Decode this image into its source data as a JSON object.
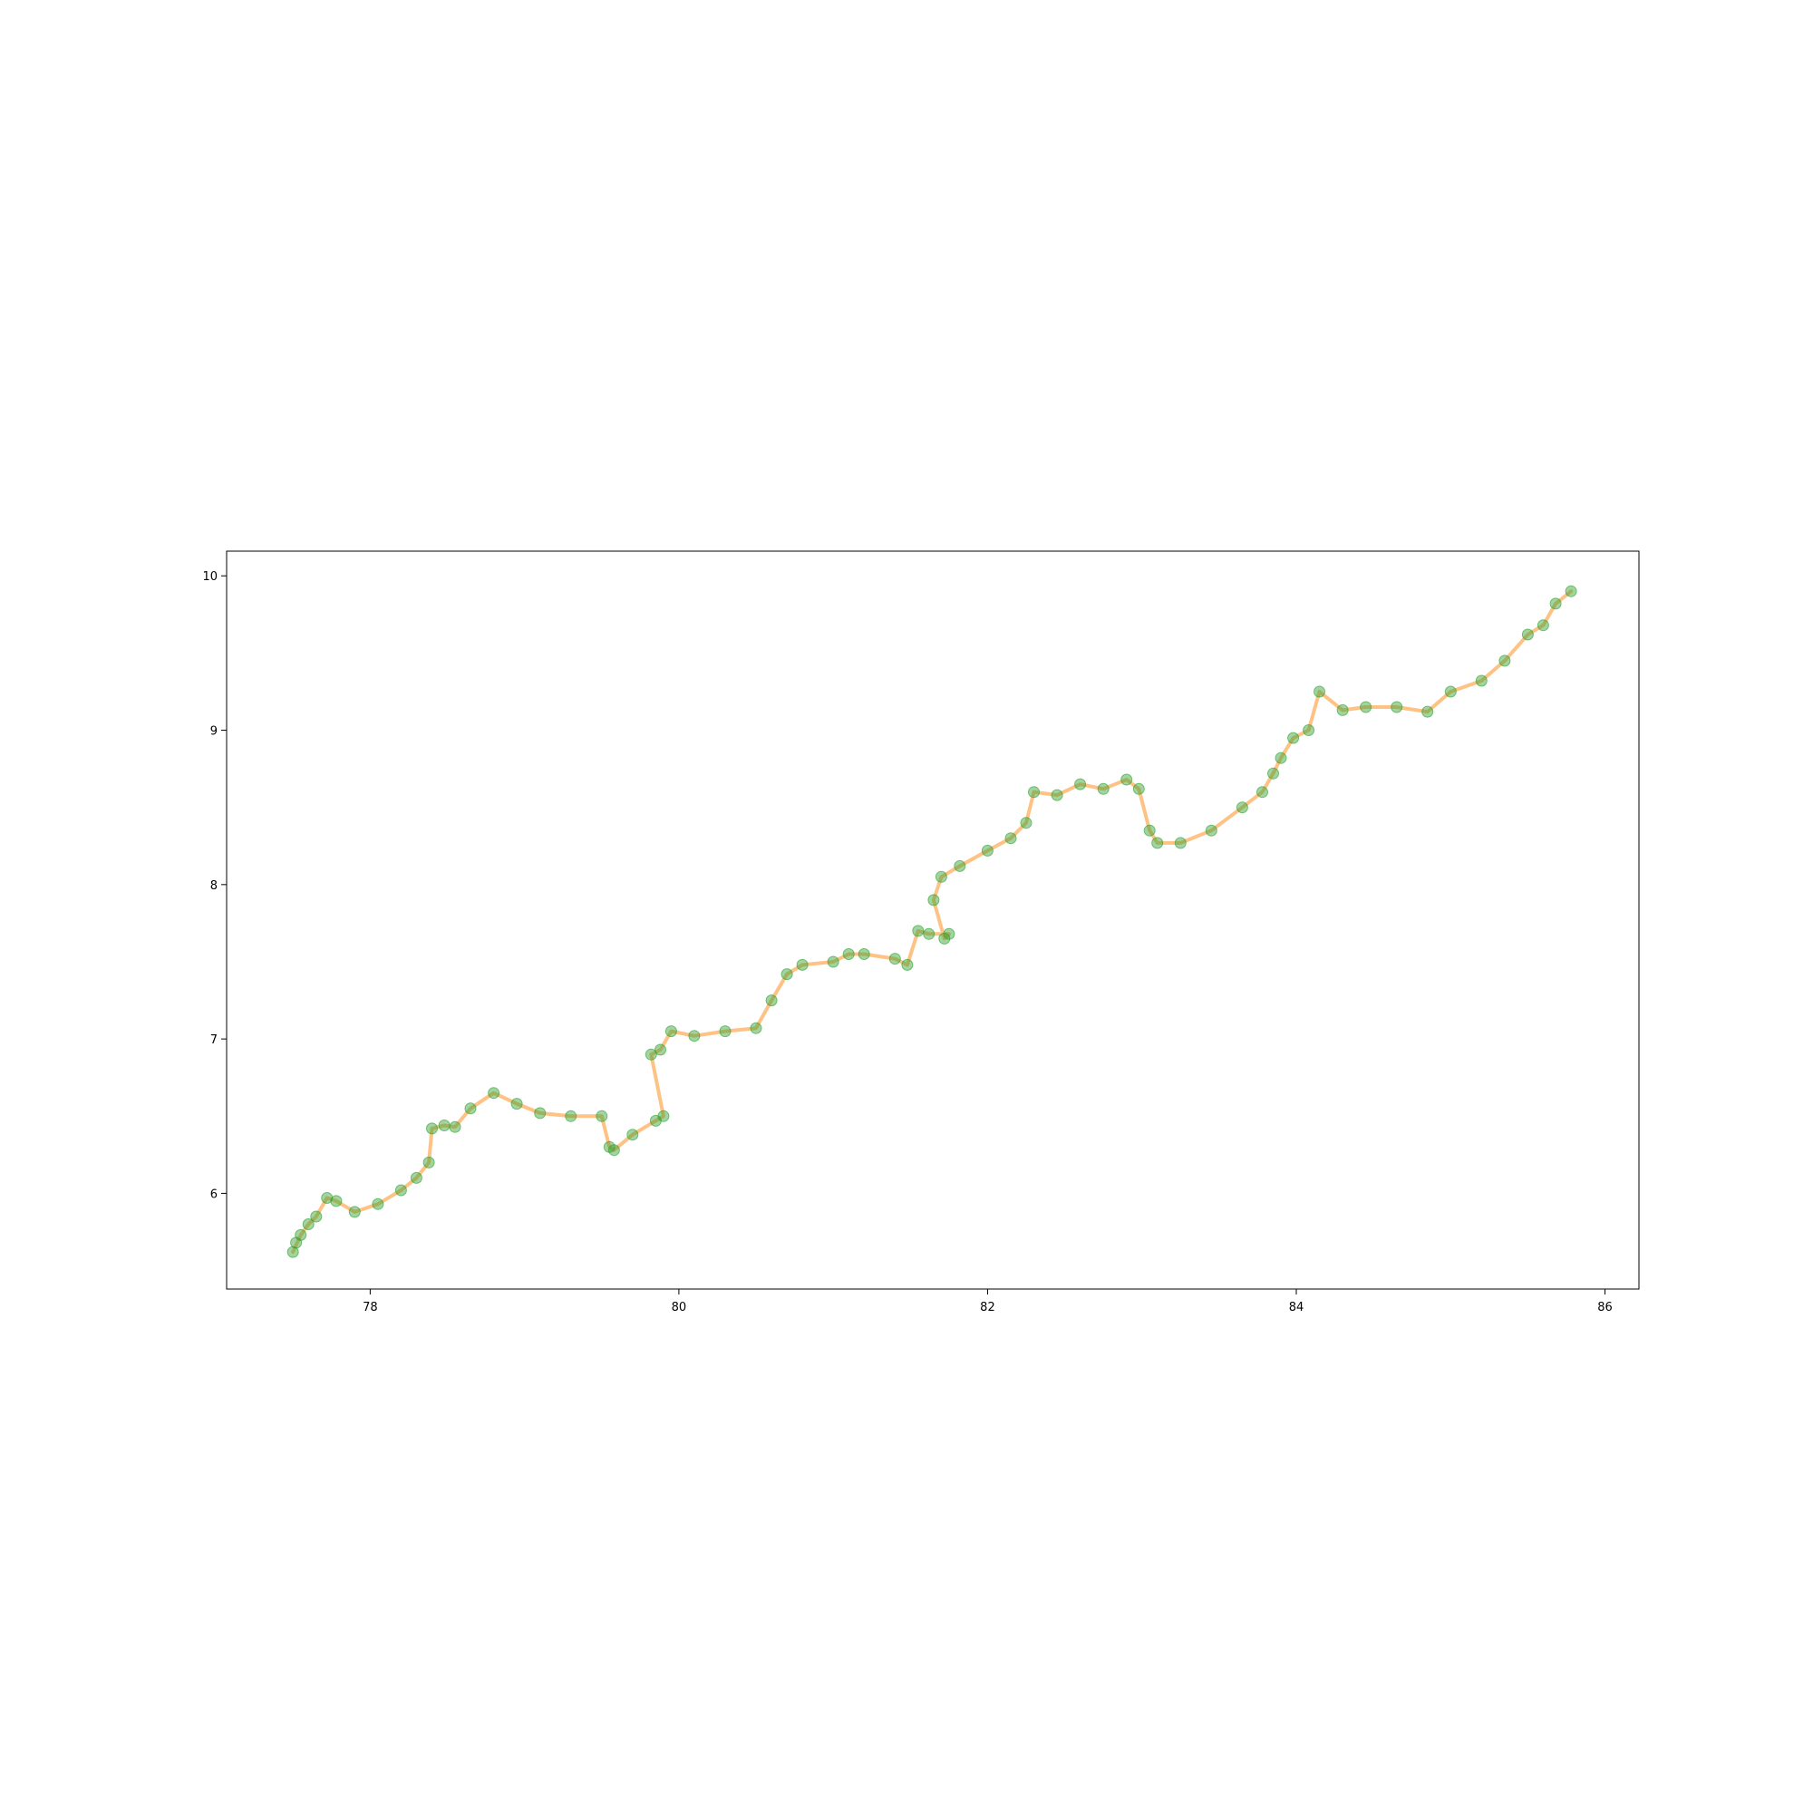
{
  "chart_data": {
    "type": "scatter",
    "title": "",
    "xlabel": "",
    "ylabel": "",
    "xlim": [
      77.07,
      86.22
    ],
    "ylim": [
      5.38,
      10.16
    ],
    "grid": false,
    "legend": "none",
    "x_ticks": [
      {
        "value": 78,
        "label": "78"
      },
      {
        "value": 80,
        "label": "80"
      },
      {
        "value": 82,
        "label": "82"
      },
      {
        "value": 84,
        "label": "84"
      },
      {
        "value": 86,
        "label": "86"
      }
    ],
    "y_ticks": [
      {
        "value": 6,
        "label": "6"
      },
      {
        "value": 7,
        "label": "7"
      },
      {
        "value": 8,
        "label": "8"
      },
      {
        "value": 9,
        "label": "9"
      },
      {
        "value": 10,
        "label": "10"
      }
    ],
    "series": [
      {
        "style": "line",
        "color": "#ffbb78",
        "x": [
          77.5,
          77.55,
          77.6,
          77.65,
          77.72,
          77.78,
          77.9,
          78.05,
          78.2,
          78.3,
          78.38,
          78.4,
          78.48,
          78.55,
          78.65,
          78.8,
          78.95,
          79.1,
          79.3,
          79.5,
          79.55,
          79.58,
          79.7,
          79.85,
          79.9,
          79.82,
          79.88,
          79.95,
          80.1,
          80.3,
          80.5,
          80.6,
          80.7,
          80.8,
          81.0,
          81.1,
          81.2,
          81.4,
          81.48,
          81.55,
          81.62,
          81.75,
          81.72,
          81.65,
          81.7,
          81.82,
          82.0,
          82.15,
          82.25,
          82.3,
          82.45,
          82.6,
          82.75,
          82.9,
          82.98,
          83.05,
          83.1,
          83.25,
          83.45,
          83.65,
          83.78,
          83.85,
          83.9,
          83.98,
          84.08,
          84.15,
          84.3,
          84.45,
          84.65,
          84.85,
          85.0,
          85.2,
          85.35,
          85.5,
          85.6,
          85.68,
          85.78
        ],
        "y": [
          5.62,
          5.73,
          5.8,
          5.85,
          5.97,
          5.95,
          5.88,
          5.93,
          6.02,
          6.1,
          6.2,
          6.42,
          6.44,
          6.43,
          6.55,
          6.65,
          6.58,
          6.52,
          6.5,
          6.5,
          6.3,
          6.28,
          6.38,
          6.47,
          6.5,
          6.9,
          6.93,
          7.05,
          7.02,
          7.05,
          7.07,
          7.25,
          7.42,
          7.48,
          7.5,
          7.55,
          7.55,
          7.52,
          7.48,
          7.7,
          7.68,
          7.68,
          7.65,
          7.9,
          8.05,
          8.12,
          8.22,
          8.3,
          8.4,
          8.6,
          8.58,
          8.65,
          8.62,
          8.68,
          8.62,
          8.35,
          8.27,
          8.27,
          8.35,
          8.5,
          8.6,
          8.72,
          8.82,
          8.95,
          9.0,
          9.25,
          9.13,
          9.15,
          9.15,
          9.12,
          9.25,
          9.32,
          9.45,
          9.62,
          9.68,
          9.82,
          9.9
        ]
      },
      {
        "style": "scatter",
        "color": "#2ca02c",
        "x": [
          77.5,
          77.52,
          77.55,
          77.6,
          77.65,
          77.72,
          77.78,
          77.9,
          78.05,
          78.2,
          78.3,
          78.38,
          78.4,
          78.48,
          78.55,
          78.65,
          78.8,
          78.95,
          79.1,
          79.3,
          79.5,
          79.55,
          79.58,
          79.7,
          79.85,
          79.9,
          79.82,
          79.88,
          79.95,
          80.1,
          80.3,
          80.5,
          80.6,
          80.7,
          80.8,
          81.0,
          81.1,
          81.2,
          81.4,
          81.48,
          81.55,
          81.62,
          81.75,
          81.72,
          81.65,
          81.7,
          81.82,
          82.0,
          82.15,
          82.25,
          82.3,
          82.45,
          82.6,
          82.75,
          82.9,
          82.98,
          83.05,
          83.1,
          83.25,
          83.45,
          83.65,
          83.78,
          83.85,
          83.9,
          83.98,
          84.08,
          84.15,
          84.3,
          84.45,
          84.65,
          84.85,
          85.0,
          85.2,
          85.35,
          85.5,
          85.6,
          85.68,
          85.78
        ],
        "y": [
          5.62,
          5.68,
          5.73,
          5.8,
          5.85,
          5.97,
          5.95,
          5.88,
          5.93,
          6.02,
          6.1,
          6.2,
          6.42,
          6.44,
          6.43,
          6.55,
          6.65,
          6.58,
          6.52,
          6.5,
          6.5,
          6.3,
          6.28,
          6.38,
          6.47,
          6.5,
          6.9,
          6.93,
          7.05,
          7.02,
          7.05,
          7.07,
          7.25,
          7.42,
          7.48,
          7.5,
          7.55,
          7.55,
          7.52,
          7.48,
          7.7,
          7.68,
          7.68,
          7.65,
          7.9,
          8.05,
          8.12,
          8.22,
          8.3,
          8.4,
          8.6,
          8.58,
          8.65,
          8.62,
          8.68,
          8.62,
          8.35,
          8.27,
          8.27,
          8.35,
          8.5,
          8.6,
          8.72,
          8.82,
          8.95,
          9.0,
          9.25,
          9.13,
          9.15,
          9.15,
          9.12,
          9.25,
          9.32,
          9.45,
          9.62,
          9.68,
          9.82,
          9.9
        ]
      }
    ]
  }
}
